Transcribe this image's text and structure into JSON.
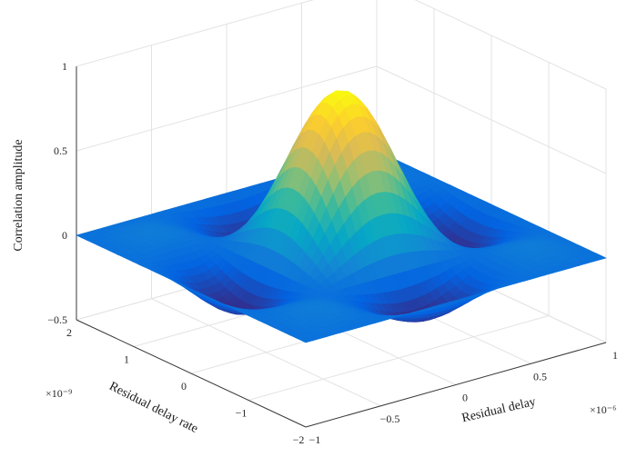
{
  "chart_data": {
    "type": "surface",
    "title": "",
    "zlabel": "Correlation amplitude",
    "xlabel": "Residual delay",
    "ylabel": "Residual delay rate",
    "x_exponent_label": "×10⁻⁶",
    "y_exponent_label": "×10⁻⁹",
    "xlim": [
      -1,
      1
    ],
    "ylim": [
      -2,
      2
    ],
    "zlim": [
      -0.5,
      1
    ],
    "x_ticks": [
      -1,
      -0.5,
      0,
      0.5,
      1
    ],
    "x_tick_labels": [
      "−1",
      "−0.5",
      "0",
      "0.5",
      "1"
    ],
    "y_ticks": [
      -2,
      -1,
      0,
      1,
      2
    ],
    "y_tick_labels": [
      "−2",
      "−1",
      "0",
      "1",
      "2"
    ],
    "z_ticks": [
      -0.5,
      0,
      0.5,
      1
    ],
    "z_tick_labels": [
      "−0.5",
      "0",
      "0.5",
      "1"
    ],
    "peak": {
      "x": 0,
      "y": 0,
      "z": 0.92
    },
    "function": "z = peak * sinc(x / 0.5e-6) * sinc(y / 1e-9)",
    "grid": true,
    "colormap": "parula",
    "colormap_colors": [
      "#352a87",
      "#0363e1",
      "#1485d4",
      "#06a7c6",
      "#38b99e",
      "#92bf73",
      "#d9ba56",
      "#fcce2e",
      "#f9fb0e"
    ]
  }
}
